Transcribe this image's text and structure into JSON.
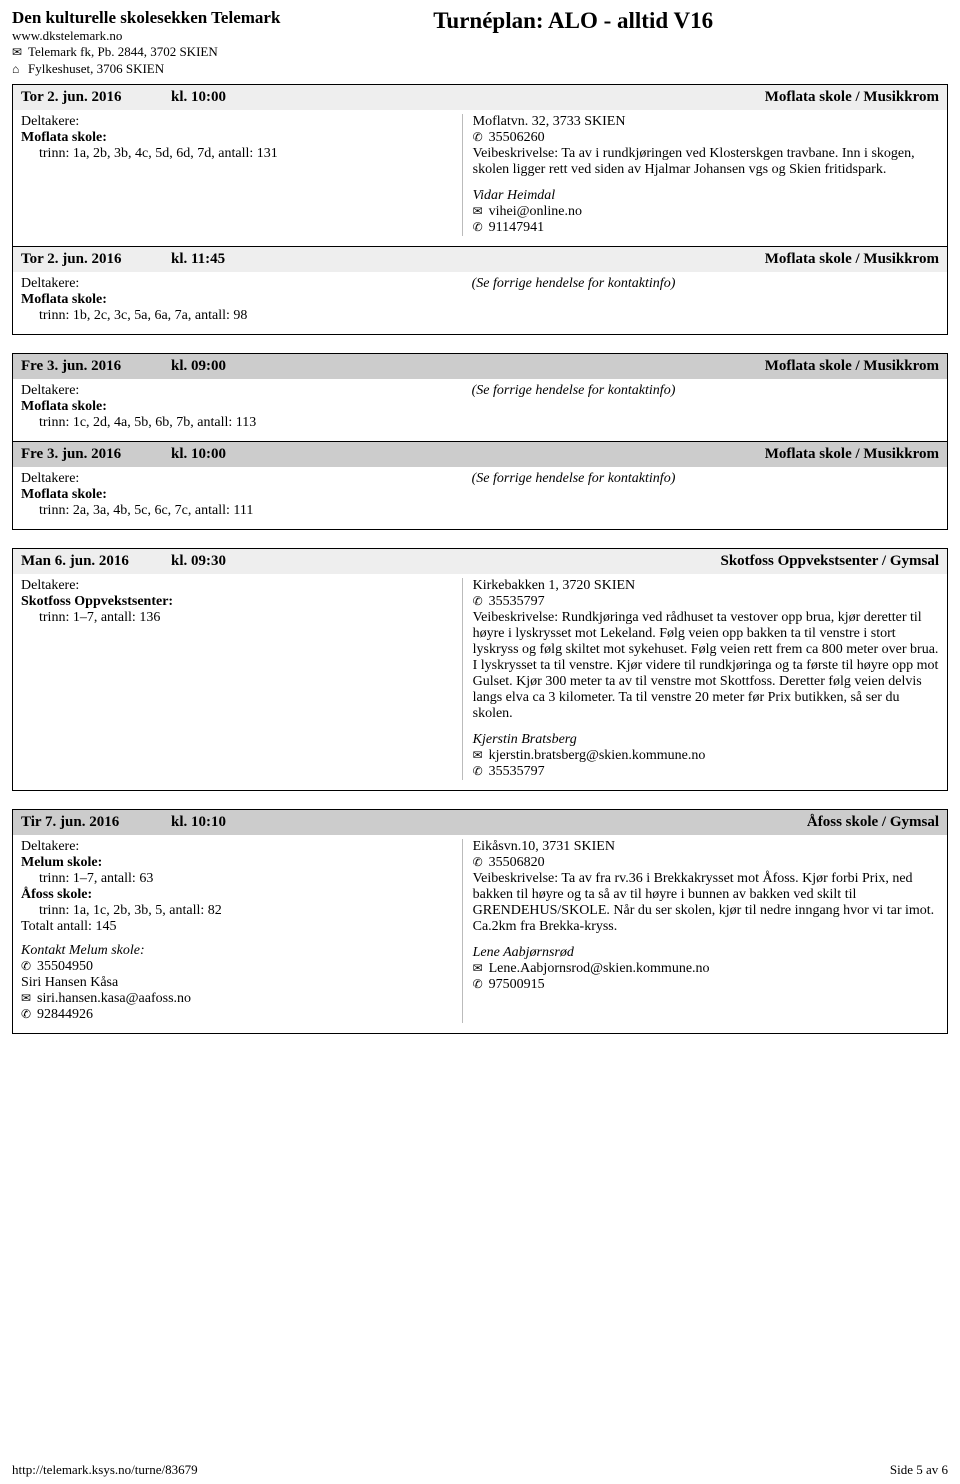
{
  "header": {
    "org_name": "Den kulturelle skolesekken Telemark",
    "url": "www.dkstelemark.no",
    "addr1_icon": "✉",
    "addr1": "Telemark fk, Pb. 2844, 3702 SKIEN",
    "addr2_icon": "⌂",
    "addr2": "Fylkeshuset, 3706 SKIEN",
    "title": "Turnéplan: ALO - alltid V16"
  },
  "labels": {
    "deltakere": "Deltakere:",
    "se_forrige": "(Se forrige hendelse for kontaktinfo)"
  },
  "events": [
    {
      "shade": "grey",
      "date": "Tor 2. jun. 2016",
      "time": "kl. 10:00",
      "venue": "Moflata skole / Musikkrom",
      "left_school": "Moflata skole:",
      "left_trinn": "trinn: 1a, 2b, 3b, 4c, 5d, 6d, 7d, antall: 131",
      "right": {
        "address": "Moflatvn. 32, 3733 SKIEN",
        "phone_icon": "✆",
        "phone": "35506260",
        "veibeskrivelse": "Veibeskrivelse: Ta av i rundkjøringen ved Klosterskgen travbane. Inn i skogen, skolen ligger rett ved siden av Hjalmar Johansen vgs og Skien fritidspark.",
        "contact_name": "Vidar Heimdal",
        "email_icon": "✉",
        "email": "vihei@online.no",
        "phone2_icon": "✆",
        "phone2": "91147941"
      }
    },
    {
      "shade": "grey",
      "date": "Tor 2. jun. 2016",
      "time": "kl. 11:45",
      "venue": "Moflata skole / Musikkrom",
      "left_school": "Moflata skole:",
      "left_trinn": "trinn: 1b, 2c, 3c, 5a, 6a, 7a, antall: 98",
      "right_ref": true
    }
  ],
  "group2": [
    {
      "shade": "dark",
      "date": "Fre 3. jun. 2016",
      "time": "kl. 09:00",
      "venue": "Moflata skole / Musikkrom",
      "left_school": "Moflata skole:",
      "left_trinn": "trinn: 1c, 2d, 4a, 5b, 6b, 7b, antall: 113",
      "right_ref": true
    },
    {
      "shade": "dark",
      "date": "Fre 3. jun. 2016",
      "time": "kl. 10:00",
      "venue": "Moflata skole / Musikkrom",
      "left_school": "Moflata skole:",
      "left_trinn": "trinn: 2a, 3a, 4b, 5c, 6c, 7c, antall: 111",
      "right_ref": true
    }
  ],
  "event3": {
    "shade": "grey",
    "date": "Man 6. jun. 2016",
    "time": "kl. 09:30",
    "venue": "Skotfoss Oppvekstsenter / Gymsal",
    "left_school": "Skotfoss Oppvekstsenter:",
    "left_trinn": "trinn: 1–7, antall: 136",
    "right": {
      "address": "Kirkebakken 1, 3720 SKIEN",
      "phone_icon": "✆",
      "phone": "35535797",
      "veibeskrivelse": "Veibeskrivelse: Rundkjøringa ved rådhuset ta vestover opp brua, kjør deretter til høyre i lyskrysset mot Lekeland. Følg veien opp bakken ta til venstre i stort lyskryss og følg skiltet mot sykehuset. Følg veien rett frem ca 800 meter over brua. I lyskrysset ta til venstre. Kjør videre til rundkjøringa og ta første til høyre opp mot Gulset. Kjør 300 meter ta av til venstre mot Skottfoss. Deretter følg veien delvis langs elva ca 3 kilometer. Ta til venstre 20 meter før Prix butikken, så ser du skolen.",
      "contact_name": "Kjerstin Bratsberg",
      "email_icon": "✉",
      "email": "kjerstin.bratsberg@skien.kommune.no",
      "phone2_icon": "✆",
      "phone2": "35535797"
    }
  },
  "event4": {
    "shade": "dark",
    "date": "Tir 7. jun. 2016",
    "time": "kl. 10:10",
    "venue": "Åfoss skole / Gymsal",
    "left": {
      "school1": "Melum skole:",
      "trinn1": "trinn: 1–7, antall: 63",
      "school2": "Åfoss skole:",
      "trinn2": "trinn: 1a, 1c, 2b, 3b, 5, antall: 82",
      "total": "Totalt antall: 145",
      "kontakt_label": "Kontakt Melum skole:",
      "kphone_icon": "✆",
      "kphone": "35504950",
      "kname": "Siri Hansen Kåsa",
      "kemail_icon": "✉",
      "kemail": "siri.hansen.kasa@aafoss.no",
      "kphone2_icon": "✆",
      "kphone2": "92844926"
    },
    "right": {
      "address": "Eikåsvn.10, 3731 SKIEN",
      "phone_icon": "✆",
      "phone": "35506820",
      "veibeskrivelse": "Veibeskrivelse: Ta av fra rv.36 i Brekkakrysset mot Åfoss. Kjør forbi Prix, ned bakken til høyre og ta så av til høyre i bunnen av bakken ved skilt til GRENDEHUS/SKOLE. Når du ser skolen, kjør til nedre inngang hvor vi tar imot. Ca.2km fra Brekka-kryss.",
      "contact_name": "Lene Aabjørnsrød",
      "email_icon": "✉",
      "email": "Lene.Aabjornsrod@skien.kommune.no",
      "phone2_icon": "✆",
      "phone2": "97500915"
    }
  },
  "footer": {
    "url": "http://telemark.ksys.no/turne/83679",
    "page": "Side 5 av 6"
  }
}
